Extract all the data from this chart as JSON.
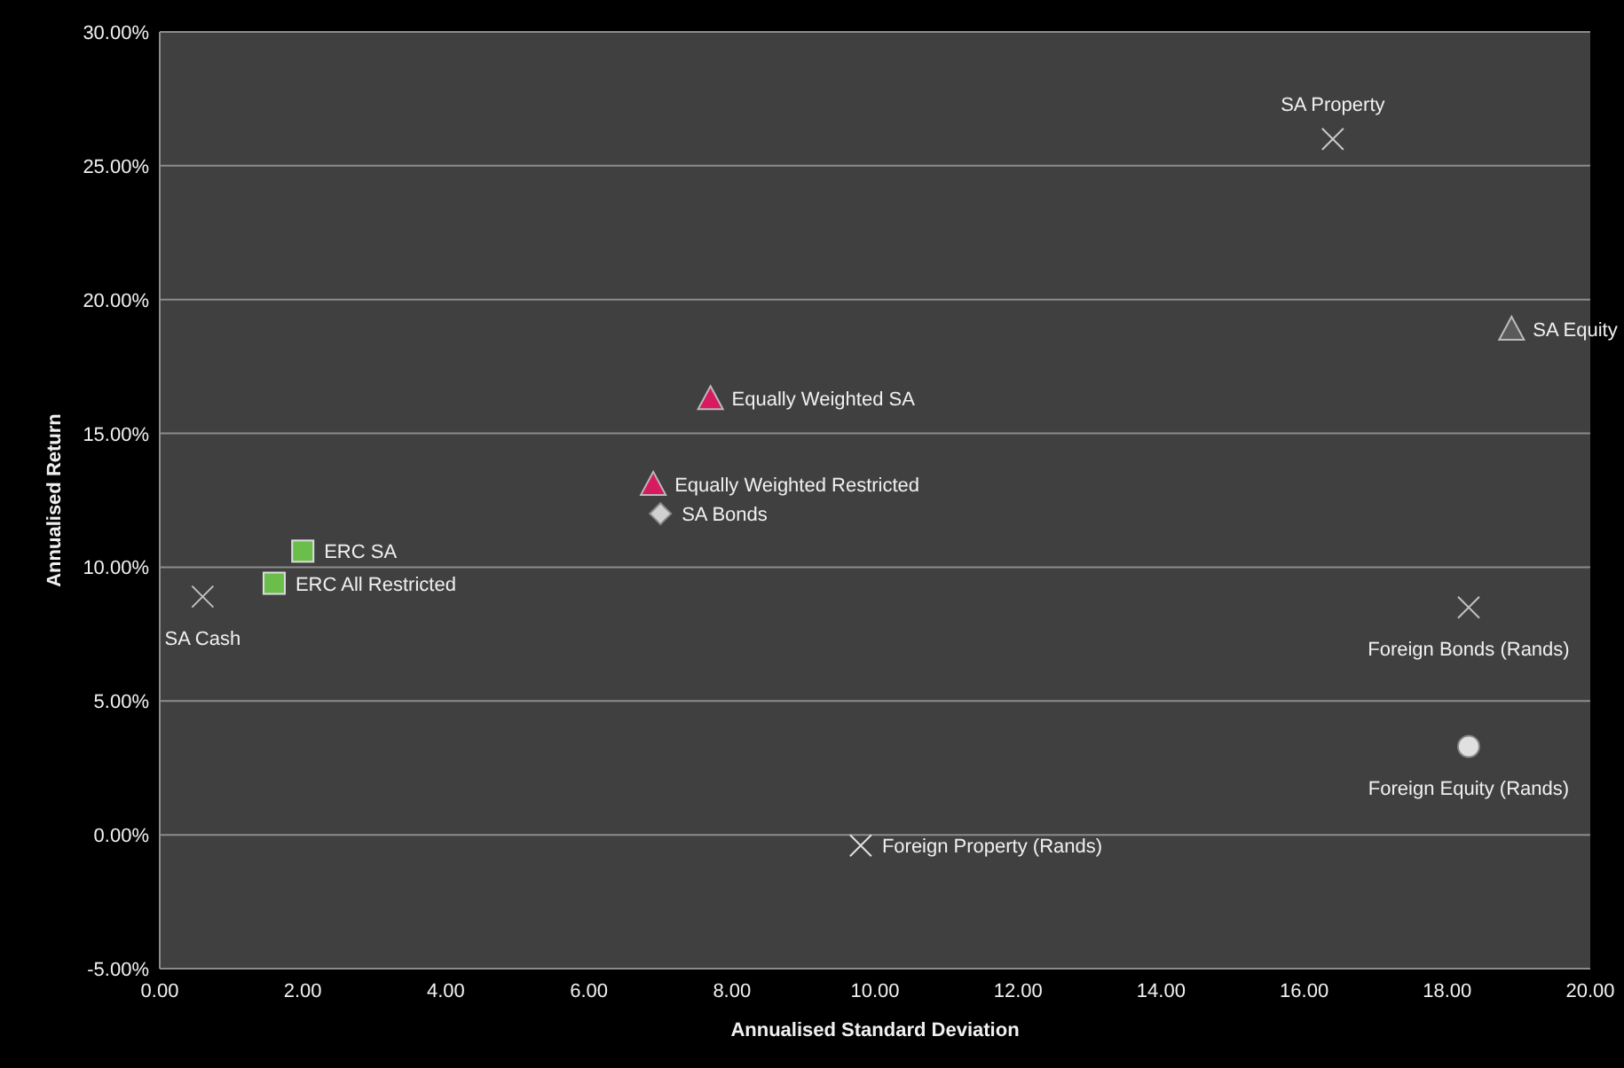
{
  "chart_data": {
    "type": "scatter",
    "xlabel": "Annualised Standard Deviation",
    "ylabel": "Annualised Return",
    "xlim": [
      0,
      20
    ],
    "ylim": [
      -5,
      30
    ],
    "xticks": [
      {
        "value": 0,
        "label": "0.00"
      },
      {
        "value": 2,
        "label": "2.00"
      },
      {
        "value": 4,
        "label": "4.00"
      },
      {
        "value": 6,
        "label": "6.00"
      },
      {
        "value": 8,
        "label": "8.00"
      },
      {
        "value": 10,
        "label": "10.00"
      },
      {
        "value": 12,
        "label": "12.00"
      },
      {
        "value": 14,
        "label": "14.00"
      },
      {
        "value": 16,
        "label": "16.00"
      },
      {
        "value": 18,
        "label": "18.00"
      },
      {
        "value": 20,
        "label": "20.00"
      }
    ],
    "yticks": [
      {
        "value": -5,
        "label": "-5.00%"
      },
      {
        "value": 0,
        "label": "0.00%"
      },
      {
        "value": 5,
        "label": "5.00%"
      },
      {
        "value": 10,
        "label": "10.00%"
      },
      {
        "value": 15,
        "label": "15.00%"
      },
      {
        "value": 20,
        "label": "20.00%"
      },
      {
        "value": 25,
        "label": "25.00%"
      },
      {
        "value": 30,
        "label": "30.00%"
      }
    ],
    "grid": "y",
    "series": [
      {
        "name": "SA Property",
        "color": "#c8c8c8",
        "marker": "cross",
        "x": [
          16.4
        ],
        "values": [
          26.0
        ]
      },
      {
        "name": "SA Equity",
        "color": "#5a5a5a",
        "marker": "triangle",
        "x": [
          18.9
        ],
        "values": [
          18.9
        ]
      },
      {
        "name": "Equally Weighted SA",
        "color": "#d81b60",
        "marker": "triangle",
        "x": [
          7.7
        ],
        "values": [
          16.3
        ]
      },
      {
        "name": "Equally Weighted Restricted",
        "color": "#d81b60",
        "marker": "triangle",
        "x": [
          6.9
        ],
        "values": [
          13.1
        ]
      },
      {
        "name": "SA Bonds",
        "color": "#d0d0d0",
        "marker": "diamond",
        "x": [
          7.0
        ],
        "values": [
          12.0
        ]
      },
      {
        "name": "ERC SA",
        "color": "#6abf4b",
        "marker": "square",
        "x": [
          2.0
        ],
        "values": [
          10.6
        ]
      },
      {
        "name": "ERC All Restricted",
        "color": "#6abf4b",
        "marker": "square",
        "x": [
          1.6
        ],
        "values": [
          9.4
        ]
      },
      {
        "name": "SA Cash",
        "color": "#c0c0c0",
        "marker": "cross",
        "x": [
          0.6
        ],
        "values": [
          8.9
        ]
      },
      {
        "name": "Foreign Bonds (Rands)",
        "color": "#c0c0c0",
        "marker": "cross",
        "x": [
          18.3
        ],
        "values": [
          8.5
        ]
      },
      {
        "name": "Foreign Equity (Rands)",
        "color": "#e0e0e0",
        "marker": "circle",
        "x": [
          18.3
        ],
        "values": [
          3.3
        ]
      },
      {
        "name": "Foreign Property (Rands)",
        "color": "#e0e0e0",
        "marker": "cross",
        "x": [
          9.8
        ],
        "values": [
          -0.4
        ]
      }
    ]
  }
}
